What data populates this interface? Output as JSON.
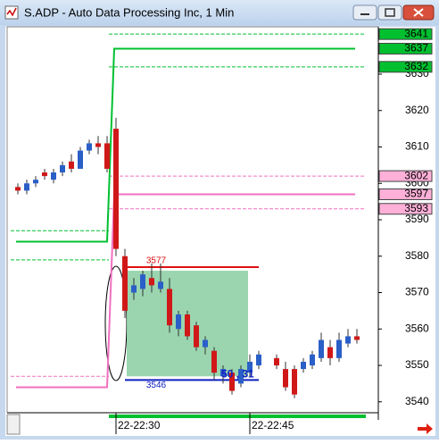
{
  "chart_data": {
    "type": "candlestick",
    "title": "S.ADP - Auto Data Processing Inc, 1 Min",
    "x": [
      19,
      20,
      21,
      22,
      23,
      24,
      25,
      26,
      27,
      28,
      29,
      30,
      31,
      32,
      33,
      34,
      35,
      36,
      37,
      38,
      39,
      40,
      41,
      42,
      43,
      44,
      45,
      46,
      48,
      49,
      50,
      51,
      52,
      53,
      54,
      55,
      56,
      57
    ],
    "open": [
      3599,
      3598,
      3600,
      3603,
      3601,
      3603,
      3606,
      3604,
      3609,
      3611,
      3611,
      3615,
      3580,
      3570,
      3571,
      3574,
      3571,
      3571,
      3560,
      3564,
      3561,
      3555,
      3554,
      3547,
      3548,
      3545,
      3548,
      3550,
      3552,
      3549,
      3549,
      3549,
      3550,
      3552,
      3555,
      3552,
      3556,
      3558
    ],
    "high": [
      3600,
      3601,
      3602,
      3604,
      3604,
      3606,
      3608,
      3610,
      3612,
      3613,
      3613,
      3618,
      3582,
      3574,
      3576,
      3578,
      3578,
      3574,
      3565,
      3565,
      3562,
      3558,
      3555,
      3550,
      3549,
      3550,
      3553,
      3554,
      3553,
      3551,
      3550,
      3552,
      3554,
      3559,
      3557,
      3559,
      3560,
      3560
    ],
    "low": [
      3597,
      3597,
      3599,
      3601,
      3600,
      3602,
      3603,
      3604,
      3608,
      3608,
      3603,
      3580,
      3563,
      3568,
      3569,
      3570,
      3570,
      3559,
      3558,
      3557,
      3554,
      3553,
      3546,
      3545,
      3542,
      3544,
      3547,
      3549,
      3549,
      3543,
      3541,
      3548,
      3549,
      3551,
      3550,
      3551,
      3555,
      3556
    ],
    "close": [
      3598,
      3600,
      3601,
      3602,
      3603,
      3605,
      3604,
      3609,
      3611,
      3610,
      3604,
      3582,
      3565,
      3572,
      3575,
      3572,
      3573,
      3561,
      3564,
      3558,
      3555,
      3557,
      3548,
      3549,
      3543,
      3549,
      3551,
      3553,
      3550,
      3544,
      3542,
      3551,
      3553,
      3557,
      3552,
      3557,
      3558,
      3557
    ],
    "up_color": "#2b5fc8",
    "down_color": "#d01818",
    "xlim": [
      17.8,
      59.4
    ],
    "xticks": [
      {
        "value": 30,
        "label": "22-22:30"
      },
      {
        "value": 45,
        "label": "22-22:45"
      }
    ],
    "ylim": [
      3537,
      3643
    ],
    "yticks": [
      3540,
      3550,
      3560,
      3570,
      3580,
      3590,
      3600,
      3610,
      3620,
      3630
    ],
    "steps": [
      {
        "color": "#00c030",
        "x": [
          18.8,
          29,
          29.8,
          56.8
        ],
        "y": [
          3584,
          3584,
          3637,
          3637
        ]
      },
      {
        "color": "#f070c0",
        "x": [
          18.8,
          29,
          29.8,
          56.8
        ],
        "y": [
          3544,
          3544,
          3597,
          3597
        ]
      }
    ],
    "levels": [
      {
        "value": 3641,
        "color": "#00c030",
        "x_from": 29.2,
        "x_to": 57.9
      },
      {
        "value": 3632,
        "color": "#00c030",
        "x_from": 29.2,
        "x_to": 57.9
      },
      {
        "value": 3587,
        "color": "#00c030",
        "x_from": 18.2,
        "x_to": 29.2
      },
      {
        "value": 3579,
        "color": "#00c030",
        "x_from": 18.2,
        "x_to": 29.2
      },
      {
        "value": 3602,
        "color": "#f070c0",
        "x_from": 29.2,
        "x_to": 57.9
      },
      {
        "value": 3593,
        "color": "#f070c0",
        "x_from": 29.2,
        "x_to": 57.9
      },
      {
        "value": 3547,
        "color": "#f070c0",
        "x_from": 18.2,
        "x_to": 29.2
      }
    ],
    "price_tags": [
      {
        "value": 3641,
        "color": "#00c030"
      },
      {
        "value": 3637,
        "color": "#00c030"
      },
      {
        "value": 3632,
        "color": "#00c030"
      },
      {
        "value": 3602,
        "color": "#ffb0d8"
      },
      {
        "value": 3597,
        "color": "#ffb0d8"
      },
      {
        "value": 3593,
        "color": "#ffb0d8"
      }
    ],
    "zone": {
      "x_from": 31.2,
      "x_to": 44.8,
      "high": 3576,
      "low": 3547,
      "color": "#8fd0a6"
    },
    "marked_lines": [
      {
        "value": 3577,
        "label": "3577",
        "color": "#e01010",
        "x_from": 31,
        "x_to": 46
      },
      {
        "value": 3546,
        "label": "3546",
        "color": "#1020c0",
        "x_from": 31,
        "x_to": 46
      }
    ],
    "annotation": "50 , 31"
  }
}
